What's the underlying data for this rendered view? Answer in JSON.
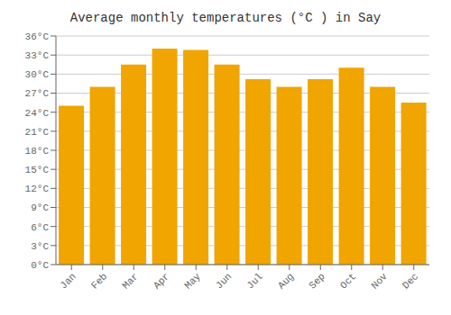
{
  "chart_data": {
    "type": "bar",
    "title": "Average monthly temperatures (°C ) in Say",
    "categories": [
      "Jan",
      "Feb",
      "Mar",
      "Apr",
      "May",
      "Jun",
      "Jul",
      "Aug",
      "Sep",
      "Oct",
      "Nov",
      "Dec"
    ],
    "values": [
      25.0,
      28.0,
      31.5,
      34.0,
      33.8,
      31.5,
      29.2,
      28.0,
      29.2,
      31.0,
      28.0,
      25.5
    ],
    "color": "#F0A500",
    "ylim": [
      0,
      36
    ],
    "yticks": [
      {
        "value": 0,
        "label": "0°C"
      },
      {
        "value": 3,
        "label": "3°C"
      },
      {
        "value": 6,
        "label": "6°C"
      },
      {
        "value": 9,
        "label": "9°C"
      },
      {
        "value": 12,
        "label": "12°C"
      },
      {
        "value": 15,
        "label": "15°C"
      },
      {
        "value": 18,
        "label": "18°C"
      },
      {
        "value": 21,
        "label": "21°C"
      },
      {
        "value": 24,
        "label": "24°C"
      },
      {
        "value": 27,
        "label": "27°C"
      },
      {
        "value": 30,
        "label": "30°C"
      },
      {
        "value": 33,
        "label": "33°C"
      },
      {
        "value": 36,
        "label": "36°C"
      }
    ],
    "grid": true
  }
}
